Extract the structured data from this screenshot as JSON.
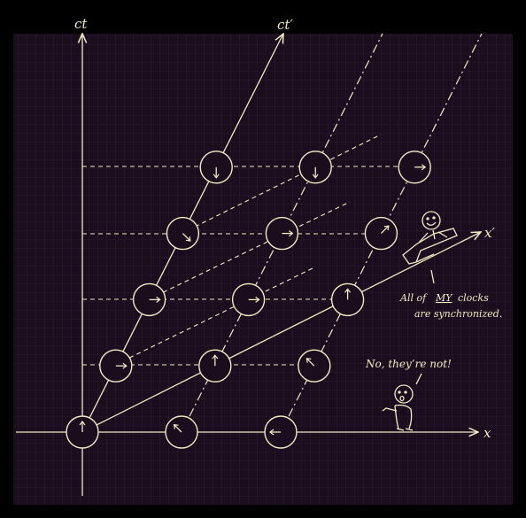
{
  "colors": {
    "background": "#000000",
    "grid_panel": "#1c0d1e",
    "grid_line": "#3a2540",
    "ink": "#f1ecc2"
  },
  "labels": {
    "ct": "ct",
    "ct_prime": "ct′",
    "x": "x",
    "x_prime": "x′"
  },
  "captions": {
    "rider_line1": "All of",
    "rider_my": "MY",
    "rider_line1_end": "clocks",
    "rider_line2": "are synchronized.",
    "observer": "No, they’re not!"
  },
  "clocks": [
    {
      "id": "clock-0-0",
      "hand": "up"
    },
    {
      "id": "clock-1-0",
      "hand": "up-left"
    },
    {
      "id": "clock-2-0",
      "hand": "left"
    },
    {
      "id": "clock-0-1",
      "hand": "right"
    },
    {
      "id": "clock-1-1",
      "hand": "up"
    },
    {
      "id": "clock-2-1",
      "hand": "up-left"
    },
    {
      "id": "clock-0-2",
      "hand": "right"
    },
    {
      "id": "clock-1-2",
      "hand": "right"
    },
    {
      "id": "clock-2-2",
      "hand": "up"
    },
    {
      "id": "clock-0-3",
      "hand": "down-right"
    },
    {
      "id": "clock-1-3",
      "hand": "right"
    },
    {
      "id": "clock-2-3",
      "hand": "up-right"
    },
    {
      "id": "clock-0-4",
      "hand": "down"
    },
    {
      "id": "clock-1-4",
      "hand": "down"
    },
    {
      "id": "clock-2-4",
      "hand": "right"
    }
  ]
}
